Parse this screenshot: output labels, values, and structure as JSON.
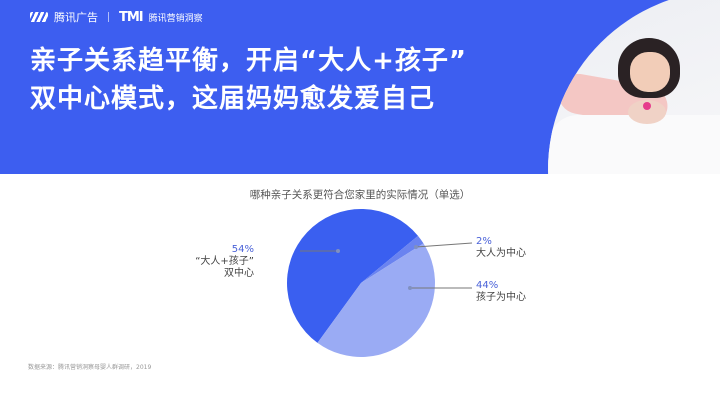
{
  "header": {
    "brand_logo": "腾讯广告",
    "partner_logo": "TMI",
    "partner_name": "腾讯营销洞察",
    "title_line1": "亲子关系趋平衡，开启“大人+孩子”",
    "title_line2": "双中心模式，这届妈妈愈发爱自己",
    "background_color": "#3d5ef0"
  },
  "chart_data": {
    "type": "pie",
    "title": "哪种亲子关系更符合您家里的实际情况（单选）",
    "slices": [
      {
        "label": "“大人+孩子”双中心",
        "label_line1": "“大人+孩子”",
        "label_line2": "双中心",
        "value": 54,
        "value_label": "54%",
        "color": "#3a5ff0"
      },
      {
        "label": "大人为中心",
        "value": 2,
        "value_label": "2%",
        "color": "#6a83f0"
      },
      {
        "label": "孩子为中心",
        "value": 44,
        "value_label": "44%",
        "color": "#9aabf4"
      }
    ]
  },
  "footer": {
    "source": "数据来源：腾讯营销洞察母婴人群调研，2019"
  }
}
